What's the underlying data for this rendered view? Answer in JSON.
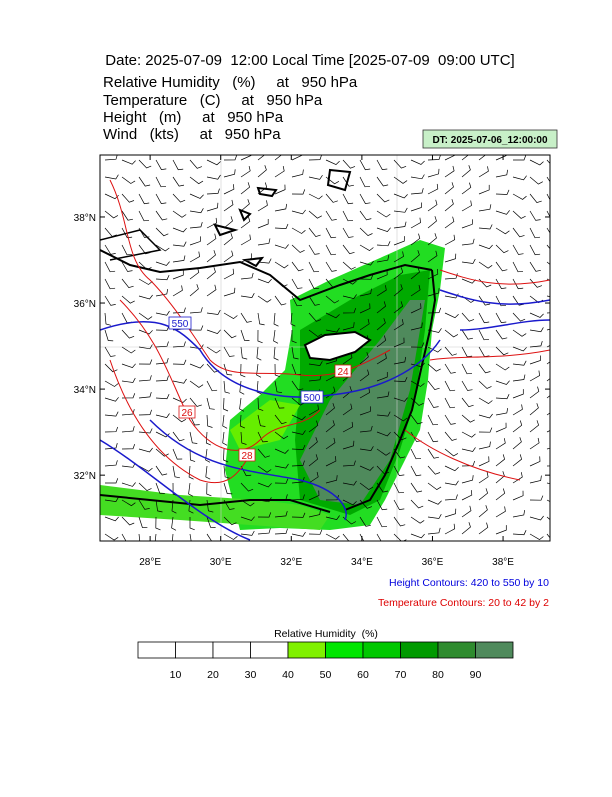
{
  "header": {
    "title": "Date: 2025-07-09  12:00 Local Time [2025-07-09  09:00 UTC]",
    "fields": [
      "Relative Humidity   (%)     at   950 hPa",
      "Temperature   (C)     at   950 hPa",
      "Height   (m)     at   950 hPa",
      "Wind   (kts)     at   950 hPa"
    ],
    "dt": "DT: 2025-07-06_12:00:00"
  },
  "map": {
    "lonlim": [
      26.58,
      39.33
    ],
    "latlim": [
      30.47,
      39.44
    ],
    "lat_ticks": [
      {
        "value": 38,
        "label": "38°N"
      },
      {
        "value": 36,
        "label": "36°N"
      },
      {
        "value": 34,
        "label": "34°N"
      },
      {
        "value": 32,
        "label": "32°N"
      }
    ],
    "lon_ticks": [
      {
        "value": 28,
        "label": "28°E"
      },
      {
        "value": 30,
        "label": "30°E"
      },
      {
        "value": 32,
        "label": "32°E"
      },
      {
        "value": 34,
        "label": "34°E"
      },
      {
        "value": 36,
        "label": "36°E"
      },
      {
        "value": 38,
        "label": "38°E"
      }
    ],
    "contour_labels": [
      {
        "text": "550",
        "color": "#1a1acc"
      },
      {
        "text": "500",
        "color": "#1a1acc"
      },
      {
        "text": "24",
        "color": "#dd1111"
      },
      {
        "text": "26",
        "color": "#dd1111"
      },
      {
        "text": "28",
        "color": "#dd1111"
      }
    ]
  },
  "notes": {
    "height": "Height Contours: 420 to 550 by 10",
    "temperature": "Temperature Contours: 20 to 42 by 2"
  },
  "colorbar": {
    "title": "Relative Humidity  (%)",
    "levels": [
      10,
      20,
      30,
      40,
      50,
      60,
      70,
      80,
      90
    ],
    "colors": [
      "#ffffff",
      "#ffffff",
      "#ffffff",
      "#ffffff",
      "#80f000",
      "#00e600",
      "#00c800",
      "#009a00",
      "#2e8b2e",
      "#4f8a5c"
    ]
  }
}
